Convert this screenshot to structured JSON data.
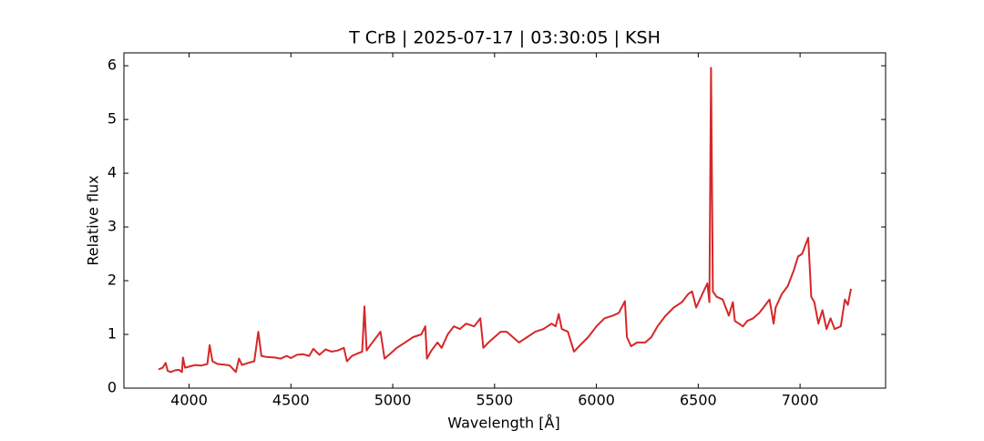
{
  "chart_data": {
    "type": "line",
    "title": "T CrB | 2025-07-17 | 03:30:05 | KSH",
    "x_label": "Wavelength [Å]",
    "y_label": "Relative flux",
    "xlim": [
      3680,
      7420
    ],
    "ylim": [
      0,
      6.24
    ],
    "xticks": [
      4000,
      4500,
      5000,
      5500,
      6000,
      6500,
      7000
    ],
    "yticks": [
      0,
      1,
      2,
      3,
      4,
      5,
      6
    ],
    "x": [
      3850,
      3870,
      3885,
      3895,
      3910,
      3930,
      3950,
      3965,
      3970,
      3980,
      4000,
      4030,
      4060,
      4090,
      4101,
      4115,
      4140,
      4170,
      4200,
      4230,
      4245,
      4260,
      4290,
      4320,
      4340,
      4355,
      4380,
      4420,
      4450,
      4480,
      4500,
      4530,
      4560,
      4590,
      4610,
      4640,
      4670,
      4700,
      4730,
      4760,
      4775,
      4800,
      4830,
      4850,
      4861,
      4872,
      4890,
      4920,
      4940,
      4960,
      4990,
      5020,
      5060,
      5100,
      5140,
      5160,
      5168,
      5190,
      5220,
      5240,
      5270,
      5300,
      5330,
      5360,
      5400,
      5430,
      5445,
      5470,
      5500,
      5530,
      5560,
      5590,
      5620,
      5660,
      5700,
      5740,
      5780,
      5800,
      5815,
      5830,
      5860,
      5880,
      5890,
      5920,
      5960,
      6000,
      6040,
      6080,
      6110,
      6140,
      6150,
      6170,
      6200,
      6240,
      6270,
      6300,
      6340,
      6380,
      6420,
      6450,
      6470,
      6490,
      6520,
      6545,
      6555,
      6563,
      6572,
      6590,
      6620,
      6650,
      6670,
      6680,
      6700,
      6720,
      6740,
      6770,
      6800,
      6830,
      6850,
      6870,
      6880,
      6910,
      6940,
      6970,
      6990,
      7010,
      7030,
      7040,
      7055,
      7070,
      7090,
      7110,
      7130,
      7150,
      7170,
      7200,
      7220,
      7235,
      7250
    ],
    "series": [
      {
        "color": "#d62728",
        "values": [
          0.35,
          0.38,
          0.47,
          0.32,
          0.3,
          0.33,
          0.34,
          0.3,
          0.57,
          0.38,
          0.4,
          0.43,
          0.42,
          0.45,
          0.8,
          0.5,
          0.45,
          0.44,
          0.42,
          0.3,
          0.55,
          0.43,
          0.47,
          0.5,
          1.05,
          0.6,
          0.58,
          0.57,
          0.55,
          0.6,
          0.56,
          0.62,
          0.63,
          0.6,
          0.73,
          0.62,
          0.72,
          0.68,
          0.7,
          0.75,
          0.5,
          0.6,
          0.65,
          0.68,
          1.52,
          0.7,
          0.8,
          0.95,
          1.05,
          0.55,
          0.65,
          0.75,
          0.85,
          0.95,
          1.0,
          1.15,
          0.55,
          0.7,
          0.85,
          0.75,
          1.0,
          1.15,
          1.1,
          1.2,
          1.15,
          1.3,
          0.75,
          0.85,
          0.95,
          1.05,
          1.05,
          0.95,
          0.85,
          0.95,
          1.05,
          1.1,
          1.2,
          1.15,
          1.38,
          1.1,
          1.05,
          0.8,
          0.68,
          0.8,
          0.95,
          1.15,
          1.3,
          1.35,
          1.4,
          1.62,
          0.95,
          0.78,
          0.85,
          0.85,
          0.95,
          1.15,
          1.35,
          1.5,
          1.6,
          1.75,
          1.8,
          1.5,
          1.75,
          1.95,
          1.6,
          5.96,
          1.8,
          1.7,
          1.65,
          1.35,
          1.6,
          1.25,
          1.2,
          1.15,
          1.25,
          1.3,
          1.4,
          1.55,
          1.65,
          1.2,
          1.5,
          1.75,
          1.9,
          2.2,
          2.45,
          2.5,
          2.7,
          2.8,
          1.7,
          1.6,
          1.2,
          1.45,
          1.1,
          1.3,
          1.1,
          1.15,
          1.65,
          1.55,
          1.85
        ]
      }
    ]
  }
}
